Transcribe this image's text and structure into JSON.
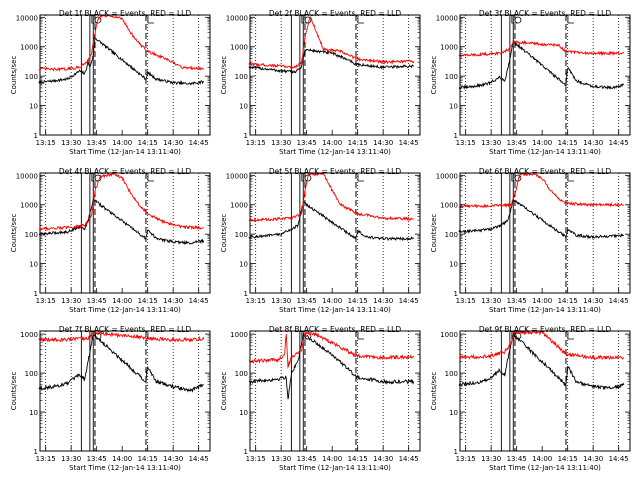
{
  "figure": {
    "ylabel": "Counts/sec",
    "xlabel": "Start Time (12-Jan-14 13:11:40)",
    "x_ticks": [
      "13:15",
      "13:30",
      "13:45",
      "14:00",
      "14:15",
      "14:30",
      "14:45"
    ],
    "colors": {
      "events": "#000000",
      "lld": "#ff0000",
      "axes": "#000000"
    }
  },
  "chart_data": [
    {
      "type": "line",
      "title": "Det 1f BLACK = Events, RED = LLD",
      "xlabel": "Start Time (12-Jan-14 13:11:40)",
      "ylabel": "Counts/sec",
      "x_ticks": [
        "13:15",
        "13:30",
        "13:45",
        "14:00",
        "14:15",
        "14:30",
        "14:45"
      ],
      "y_ticks": [
        "1",
        "10",
        "100",
        "1000",
        "10000"
      ],
      "y_scale": "log",
      "xlim": [
        "13:11:40",
        "14:51:40"
      ],
      "ylim": [
        1,
        12000
      ],
      "series": [
        {
          "name": "Events",
          "color": "#000000",
          "x": [
            "13:11",
            "13:20",
            "13:28",
            "13:35",
            "13:38",
            "13:40",
            "13:41",
            "13:43",
            "13:44",
            "14:14",
            "14:15",
            "14:20",
            "14:30",
            "14:40",
            "14:48"
          ],
          "y": [
            60,
            70,
            80,
            150,
            120,
            300,
            200,
            500,
            2000,
            80,
            130,
            80,
            60,
            55,
            65
          ]
        },
        {
          "name": "LLD",
          "color": "#ff0000",
          "x": [
            "13:11",
            "13:20",
            "13:28",
            "13:35",
            "13:40",
            "13:42",
            "13:44",
            "13:46",
            "13:48",
            "13:55",
            "14:00",
            "14:05",
            "14:10",
            "14:15",
            "14:25",
            "14:35",
            "14:48"
          ],
          "y": [
            180,
            170,
            175,
            200,
            350,
            600,
            3000,
            9000,
            11000,
            11000,
            9000,
            3000,
            1300,
            700,
            400,
            200,
            180
          ]
        }
      ],
      "annotations": {
        "solid_vlines": [
          "13:36",
          "13:41",
          "13:43"
        ],
        "dashed_vlines": [
          "13:44",
          "14:14"
        ],
        "dotted_vlines": [
          "13:15",
          "13:30",
          "14:15",
          "14:30",
          "14:45"
        ]
      }
    },
    {
      "type": "line",
      "title": "Det 2f BLACK = Events, RED = LLD",
      "xlabel": "Start Time (12-Jan-14 13:11:40)",
      "ylabel": "Counts/sec",
      "x_ticks": [
        "13:15",
        "13:30",
        "13:45",
        "14:00",
        "14:15",
        "14:30",
        "14:45"
      ],
      "y_ticks": [
        "1",
        "10",
        "100",
        "1000",
        "10000"
      ],
      "y_scale": "log",
      "xlim": [
        "13:11:40",
        "14:51:40"
      ],
      "ylim": [
        1,
        12000
      ],
      "series": [
        {
          "name": "Events",
          "color": "#000000",
          "x": [
            "13:11",
            "13:20",
            "13:30",
            "13:38",
            "13:42",
            "13:44",
            "14:00",
            "14:10",
            "14:14",
            "14:30",
            "14:48"
          ],
          "y": [
            200,
            180,
            150,
            140,
            200,
            800,
            600,
            350,
            250,
            200,
            220
          ]
        },
        {
          "name": "LLD",
          "color": "#ff0000",
          "x": [
            "13:11",
            "13:20",
            "13:30",
            "13:38",
            "13:42",
            "13:44",
            "13:47",
            "13:55",
            "14:05",
            "14:14",
            "14:30",
            "14:48"
          ],
          "y": [
            260,
            240,
            220,
            200,
            300,
            2000,
            11000,
            800,
            700,
            400,
            300,
            320
          ]
        }
      ],
      "annotations": {
        "solid_vlines": [
          "13:36",
          "13:41",
          "13:43"
        ],
        "dashed_vlines": [
          "13:44",
          "14:14"
        ],
        "dotted_vlines": [
          "13:15",
          "13:30",
          "14:15",
          "14:30",
          "14:45"
        ]
      }
    },
    {
      "type": "line",
      "title": "Det 3f BLACK = Events, RED = LLD",
      "xlabel": "Start Time (12-Jan-14 13:11:40)",
      "ylabel": "Counts/sec",
      "x_ticks": [
        "13:15",
        "13:30",
        "13:45",
        "14:00",
        "14:15",
        "14:30",
        "14:45"
      ],
      "y_ticks": [
        "1",
        "10",
        "100",
        "1000",
        "10000"
      ],
      "y_scale": "log",
      "xlim": [
        "13:11:40",
        "14:51:40"
      ],
      "ylim": [
        1,
        12000
      ],
      "series": [
        {
          "name": "Events",
          "color": "#000000",
          "x": [
            "13:11",
            "13:20",
            "13:28",
            "13:35",
            "13:38",
            "13:40",
            "13:43",
            "14:14",
            "14:15",
            "14:20",
            "14:30",
            "14:40",
            "14:48"
          ],
          "y": [
            40,
            45,
            55,
            90,
            70,
            200,
            1500,
            50,
            200,
            70,
            45,
            40,
            50
          ]
        },
        {
          "name": "LLD",
          "color": "#ff0000",
          "x": [
            "13:11",
            "13:25",
            "13:35",
            "13:40",
            "13:43",
            "14:00",
            "14:10",
            "14:14",
            "14:25",
            "14:48"
          ],
          "y": [
            500,
            550,
            600,
            800,
            1500,
            1200,
            1100,
            700,
            600,
            600
          ]
        }
      ],
      "annotations": {
        "solid_vlines": [
          "13:36",
          "13:41",
          "13:43"
        ],
        "dashed_vlines": [
          "13:44",
          "14:14"
        ],
        "dotted_vlines": [
          "13:15",
          "13:30",
          "14:15",
          "14:30",
          "14:45"
        ]
      }
    },
    {
      "type": "line",
      "title": "Det 4f BLACK = Events, RED = LLD",
      "xlabel": "Start Time (12-Jan-14 13:11:40)",
      "ylabel": "Counts/sec",
      "x_ticks": [
        "13:15",
        "13:30",
        "13:45",
        "14:00",
        "14:15",
        "14:30",
        "14:45"
      ],
      "y_ticks": [
        "1",
        "10",
        "100",
        "1000",
        "10000"
      ],
      "y_scale": "log",
      "xlim": [
        "13:11:40",
        "14:51:40"
      ],
      "ylim": [
        1,
        12000
      ],
      "series": [
        {
          "name": "Events",
          "color": "#000000",
          "x": [
            "13:11",
            "13:20",
            "13:28",
            "13:35",
            "13:38",
            "13:40",
            "13:43",
            "14:14",
            "14:15",
            "14:20",
            "14:30",
            "14:40",
            "14:48"
          ],
          "y": [
            100,
            110,
            120,
            180,
            150,
            300,
            1500,
            70,
            150,
            70,
            55,
            50,
            60
          ]
        },
        {
          "name": "LLD",
          "color": "#ff0000",
          "x": [
            "13:11",
            "13:20",
            "13:30",
            "13:38",
            "13:42",
            "13:44",
            "13:47",
            "13:55",
            "14:00",
            "14:05",
            "14:10",
            "14:15",
            "14:25",
            "14:35",
            "14:48"
          ],
          "y": [
            150,
            160,
            170,
            200,
            400,
            3000,
            9000,
            11000,
            8000,
            2500,
            1000,
            500,
            250,
            180,
            160
          ]
        }
      ],
      "annotations": {
        "solid_vlines": [
          "13:36",
          "13:41",
          "13:43"
        ],
        "dashed_vlines": [
          "13:44",
          "14:14"
        ],
        "dotted_vlines": [
          "13:15",
          "13:30",
          "14:15",
          "14:30",
          "14:45"
        ]
      }
    },
    {
      "type": "line",
      "title": "Det 5f BLACK = Events, RED = LLD",
      "xlabel": "Start Time (12-Jan-14 13:11:40)",
      "ylabel": "Counts/sec",
      "x_ticks": [
        "13:15",
        "13:30",
        "13:45",
        "14:00",
        "14:15",
        "14:30",
        "14:45"
      ],
      "y_ticks": [
        "1",
        "10",
        "100",
        "1000",
        "10000"
      ],
      "y_scale": "log",
      "xlim": [
        "13:11:40",
        "14:51:40"
      ],
      "ylim": [
        1,
        12000
      ],
      "series": [
        {
          "name": "Events",
          "color": "#000000",
          "x": [
            "13:11",
            "13:20",
            "13:30",
            "13:36",
            "13:40",
            "13:43",
            "14:14",
            "14:15",
            "14:20",
            "14:30",
            "14:48"
          ],
          "y": [
            80,
            85,
            100,
            150,
            200,
            1200,
            70,
            130,
            80,
            70,
            70
          ]
        },
        {
          "name": "LLD",
          "color": "#ff0000",
          "x": [
            "13:11",
            "13:25",
            "13:36",
            "13:42",
            "13:44",
            "13:46",
            "13:55",
            "14:00",
            "14:05",
            "14:15",
            "14:30",
            "14:48"
          ],
          "y": [
            300,
            320,
            350,
            500,
            3000,
            11000,
            11000,
            3000,
            1000,
            500,
            350,
            330
          ]
        }
      ],
      "annotations": {
        "solid_vlines": [
          "13:36",
          "13:41",
          "13:43"
        ],
        "dashed_vlines": [
          "13:44",
          "14:14"
        ],
        "dotted_vlines": [
          "13:15",
          "13:30",
          "14:15",
          "14:30",
          "14:45"
        ]
      }
    },
    {
      "type": "line",
      "title": "Det 6f BLACK = Events, RED = LLD",
      "xlabel": "Start Time (12-Jan-14 13:11:40)",
      "ylabel": "Counts/sec",
      "x_ticks": [
        "13:15",
        "13:30",
        "13:45",
        "14:00",
        "14:15",
        "14:30",
        "14:45"
      ],
      "y_ticks": [
        "1",
        "10",
        "100",
        "1000",
        "10000"
      ],
      "y_scale": "log",
      "xlim": [
        "13:11:40",
        "14:51:40"
      ],
      "ylim": [
        1,
        12000
      ],
      "series": [
        {
          "name": "Events",
          "color": "#000000",
          "x": [
            "13:11",
            "13:20",
            "13:30",
            "13:36",
            "13:40",
            "13:43",
            "14:14",
            "14:15",
            "14:20",
            "14:30",
            "14:48"
          ],
          "y": [
            120,
            130,
            150,
            200,
            300,
            1500,
            80,
            150,
            90,
            80,
            90
          ]
        },
        {
          "name": "LLD",
          "color": "#ff0000",
          "x": [
            "13:11",
            "13:25",
            "13:36",
            "13:42",
            "13:44",
            "13:47",
            "13:55",
            "14:00",
            "14:05",
            "14:10",
            "14:15",
            "14:30",
            "14:48"
          ],
          "y": [
            900,
            900,
            950,
            1000,
            2500,
            11000,
            11000,
            8000,
            3000,
            1500,
            1100,
            1000,
            1000
          ]
        }
      ],
      "annotations": {
        "solid_vlines": [
          "13:36",
          "13:41",
          "13:43"
        ],
        "dashed_vlines": [
          "13:44",
          "14:14"
        ],
        "dotted_vlines": [
          "13:15",
          "13:30",
          "14:15",
          "14:30",
          "14:45"
        ]
      }
    },
    {
      "type": "line",
      "title": "Det 7f BLACK = Events, RED = LLD",
      "xlabel": "Start Time (12-Jan-14 13:11:40)",
      "ylabel": "Counts/sec",
      "x_ticks": [
        "13:15",
        "13:30",
        "13:45",
        "14:00",
        "14:15",
        "14:30",
        "14:45"
      ],
      "y_ticks": [
        "1",
        "10",
        "100",
        "1000"
      ],
      "y_scale": "log",
      "xlim": [
        "13:11:40",
        "14:51:40"
      ],
      "ylim": [
        1,
        1200
      ],
      "series": [
        {
          "name": "Events",
          "color": "#000000",
          "x": [
            "13:11",
            "13:20",
            "13:28",
            "13:35",
            "13:38",
            "13:40",
            "13:43",
            "14:14",
            "14:15",
            "14:20",
            "14:30",
            "14:40",
            "14:48"
          ],
          "y": [
            40,
            45,
            55,
            90,
            70,
            200,
            1000,
            60,
            150,
            60,
            45,
            35,
            50
          ]
        },
        {
          "name": "LLD",
          "color": "#ff0000",
          "x": [
            "13:11",
            "13:25",
            "13:35",
            "13:40",
            "13:43",
            "14:14",
            "14:30",
            "14:48"
          ],
          "y": [
            700,
            720,
            750,
            800,
            1100,
            800,
            700,
            750
          ]
        }
      ],
      "annotations": {
        "solid_vlines": [
          "13:36",
          "13:41",
          "13:43"
        ],
        "dashed_vlines": [
          "13:44",
          "14:14"
        ],
        "dotted_vlines": [
          "13:15",
          "13:30",
          "14:15",
          "14:30",
          "14:45"
        ]
      }
    },
    {
      "type": "line",
      "title": "Det 8f BLACK = Events, RED = LLD",
      "xlabel": "Start Time (12-Jan-14 13:11:40)",
      "ylabel": "Counts/sec",
      "x_ticks": [
        "13:15",
        "13:30",
        "13:45",
        "14:00",
        "14:15",
        "14:30",
        "14:45"
      ],
      "y_ticks": [
        "1",
        "10",
        "100",
        "1000"
      ],
      "y_scale": "log",
      "xlim": [
        "13:11:40",
        "14:51:40"
      ],
      "ylim": [
        1,
        1200
      ],
      "series": [
        {
          "name": "Events",
          "color": "#000000",
          "x": [
            "13:11",
            "13:20",
            "13:28",
            "13:33",
            "13:34",
            "13:36",
            "13:40",
            "13:43",
            "14:00",
            "14:10",
            "14:14",
            "14:30",
            "14:48"
          ],
          "y": [
            60,
            65,
            70,
            80,
            20,
            100,
            200,
            1000,
            300,
            120,
            80,
            60,
            60
          ]
        },
        {
          "name": "LLD",
          "color": "#ff0000",
          "x": [
            "13:11",
            "13:20",
            "13:28",
            "13:32",
            "13:33",
            "13:34",
            "13:36",
            "13:42",
            "13:44",
            "13:50",
            "14:00",
            "14:10",
            "14:14",
            "14:30",
            "14:48"
          ],
          "y": [
            200,
            210,
            220,
            300,
            1100,
            150,
            250,
            400,
            1100,
            1000,
            600,
            350,
            280,
            250,
            260
          ]
        }
      ],
      "annotations": {
        "solid_vlines": [
          "13:36",
          "13:41",
          "13:43"
        ],
        "dashed_vlines": [
          "13:44",
          "14:14"
        ],
        "dotted_vlines": [
          "13:15",
          "13:30",
          "14:15",
          "14:30",
          "14:45"
        ]
      }
    },
    {
      "type": "line",
      "title": "Det 9f BLACK = Events, RED = LLD",
      "xlabel": "Start Time (12-Jan-14 13:11:40)",
      "ylabel": "Counts/sec",
      "x_ticks": [
        "13:15",
        "13:30",
        "13:45",
        "14:00",
        "14:15",
        "14:30",
        "14:45"
      ],
      "y_ticks": [
        "1",
        "10",
        "100",
        "1000"
      ],
      "y_scale": "log",
      "xlim": [
        "13:11:40",
        "14:51:40"
      ],
      "ylim": [
        1,
        1200
      ],
      "series": [
        {
          "name": "Events",
          "color": "#000000",
          "x": [
            "13:11",
            "13:20",
            "13:28",
            "13:35",
            "13:38",
            "13:40",
            "13:43",
            "14:14",
            "14:15",
            "14:20",
            "14:30",
            "14:40",
            "14:48"
          ],
          "y": [
            50,
            55,
            65,
            120,
            90,
            250,
            1000,
            50,
            150,
            60,
            45,
            40,
            50
          ]
        },
        {
          "name": "LLD",
          "color": "#ff0000",
          "x": [
            "13:11",
            "13:20",
            "13:30",
            "13:38",
            "13:42",
            "13:44",
            "14:00",
            "14:05",
            "14:10",
            "14:14",
            "14:30",
            "14:48"
          ],
          "y": [
            250,
            260,
            280,
            350,
            600,
            1100,
            1100,
            700,
            450,
            300,
            250,
            250
          ]
        }
      ],
      "annotations": {
        "solid_vlines": [
          "13:36",
          "13:41",
          "13:43"
        ],
        "dashed_vlines": [
          "13:44",
          "14:14"
        ],
        "dotted_vlines": [
          "13:15",
          "13:30",
          "14:15",
          "14:30",
          "14:45"
        ]
      }
    }
  ]
}
